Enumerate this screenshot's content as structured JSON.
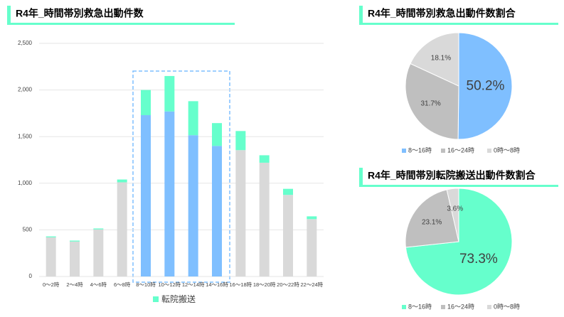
{
  "chart_data": [
    {
      "type": "bar",
      "title": "R4年_時間帯別救急出動件数",
      "categories": [
        "0～2時",
        "2～4時",
        "4～6時",
        "6～8時",
        "8～10時",
        "10～12時",
        "12～14時",
        "14～16時",
        "16～18時",
        "18～20時",
        "20～22時",
        "22～24時"
      ],
      "series": [
        {
          "colors": [
            "#d9d9d9",
            "#d9d9d9",
            "#d9d9d9",
            "#d9d9d9",
            "#7fbfff",
            "#7fbfff",
            "#7fbfff",
            "#7fbfff",
            "#d9d9d9",
            "#d9d9d9",
            "#d9d9d9",
            "#d9d9d9"
          ],
          "values": [
            420,
            375,
            505,
            1010,
            1730,
            1770,
            1515,
            1400,
            1355,
            1220,
            875,
            615
          ]
        },
        {
          "name": "転院搬送",
          "color": "#66ffcc",
          "values": [
            10,
            10,
            10,
            30,
            270,
            380,
            365,
            245,
            205,
            80,
            65,
            30
          ]
        }
      ],
      "stacked": true,
      "ylim": [
        0,
        2500
      ],
      "yticks": [
        0,
        500,
        {
          "value": 1000,
          "label": "1,000"
        },
        {
          "value": 1500,
          "label": "1,500"
        },
        {
          "value": 2000,
          "label": "2,000"
        },
        {
          "value": 2500,
          "label": "2,500"
        }
      ],
      "grid": true,
      "legend": "bottom"
    },
    {
      "type": "pie",
      "title": "R4年_時間帯別救急出動件数割合",
      "categories": [
        "8～16時",
        "16～24時",
        "0時～8時"
      ],
      "values": [
        50.2,
        31.7,
        18.1
      ],
      "value_labels": [
        "50.2%",
        "31.7%",
        "18.1%"
      ],
      "colors": [
        "#7fbfff",
        "#bfbfbf",
        "#d9d9d9"
      ],
      "legend": "bottom"
    },
    {
      "type": "pie",
      "title": "R4年_時間帯別転院搬送出動件数割合",
      "categories": [
        "8～16時",
        "16～24時",
        "0時～8時"
      ],
      "values": [
        73.3,
        23.1,
        3.6
      ],
      "value_labels": [
        "73.3%",
        "23.1%",
        "3.6%"
      ],
      "colors": [
        "#66ffcc",
        "#bfbfbf",
        "#d9d9d9"
      ],
      "legend": "bottom"
    }
  ]
}
